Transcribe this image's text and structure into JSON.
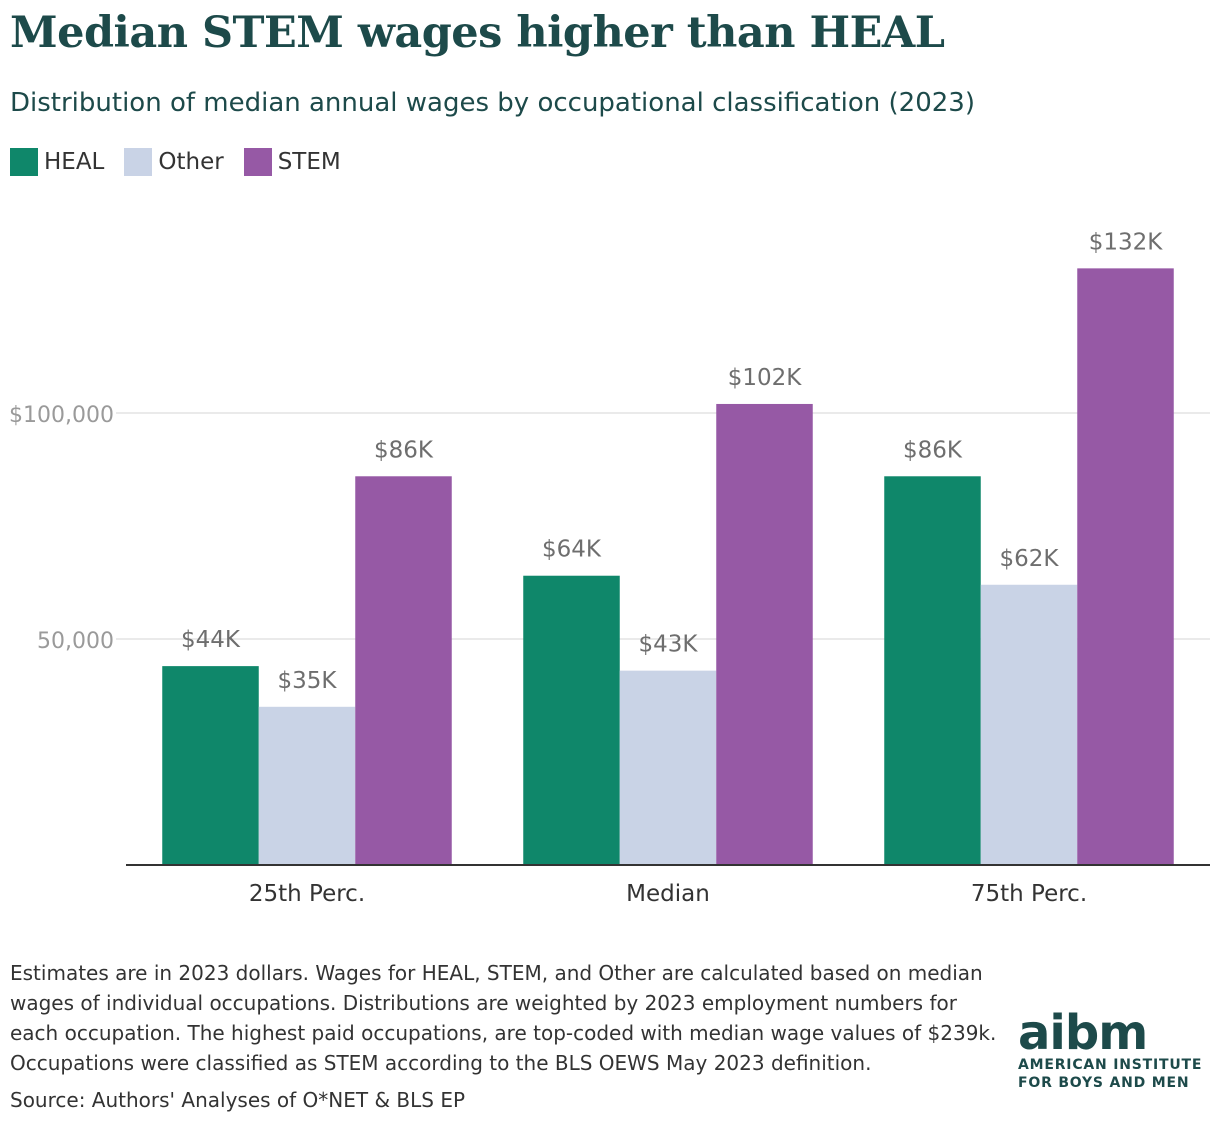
{
  "header": {
    "title": "Median STEM wages higher than HEAL",
    "subtitle": "Distribution of median annual wages by occupational classification (2023)"
  },
  "legend": [
    {
      "label": "HEAL",
      "color": "#0f876a"
    },
    {
      "label": "Other",
      "color": "#c9d3e6"
    },
    {
      "label": "STEM",
      "color": "#9659a5"
    }
  ],
  "chart_data": {
    "type": "bar",
    "categories": [
      "25th Perc.",
      "Median",
      "75th Perc."
    ],
    "series": [
      {
        "name": "HEAL",
        "values": [
          44000,
          64000,
          86000
        ],
        "labels": [
          "$44K",
          "$64K",
          "$86K"
        ],
        "color": "#0f876a"
      },
      {
        "name": "Other",
        "values": [
          35000,
          43000,
          62000
        ],
        "labels": [
          "$35K",
          "$43K",
          "$62K"
        ],
        "color": "#c9d3e6"
      },
      {
        "name": "STEM",
        "values": [
          86000,
          102000,
          132000
        ],
        "labels": [
          "$86K",
          "$102K",
          "$132K"
        ],
        "color": "#9659a5"
      }
    ],
    "yticks": [
      {
        "value": 50000,
        "label": "50,000"
      },
      {
        "value": 100000,
        "label": "$100,000"
      }
    ],
    "ylim": [
      0,
      145000
    ],
    "grid": true,
    "title": "Median STEM wages higher than HEAL",
    "xlabel": "",
    "ylabel": ""
  },
  "footnote": "Estimates are in 2023 dollars. Wages for HEAL, STEM, and Other are calculated based on median wages of individual occupations. Distributions are weighted by 2023 employment numbers for each occupation. The highest paid occupations, are top-coded with median wage values of $239k. Occupations were classified as STEM according to the BLS OEWS May 2023 definition.",
  "source": "Source: Authors' Analyses of O*NET & BLS EP",
  "logo": {
    "mark": "aibm",
    "line1": "AMERICAN INSTITUTE",
    "line2": "FOR BOYS AND MEN"
  }
}
